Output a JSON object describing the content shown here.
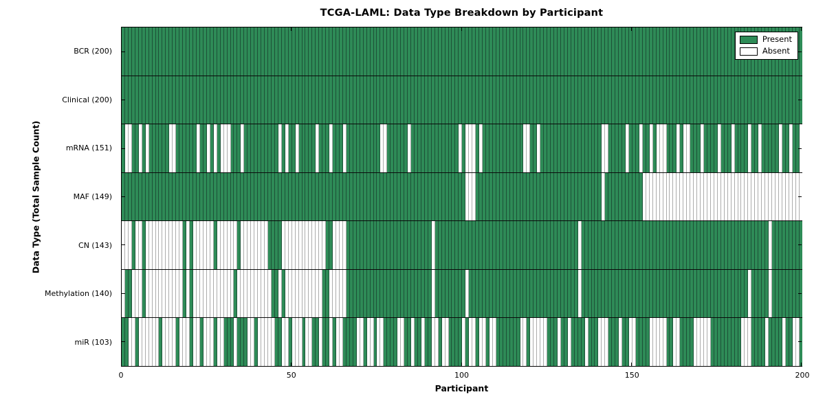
{
  "title": "TCGA-LAML: Data Type Breakdown by Participant",
  "axes": {
    "xlabel": "Participant",
    "ylabel": "Data Type (Total Sample Count)",
    "x_tick_labels": [
      "0",
      "50",
      "100",
      "150",
      "200"
    ]
  },
  "legend": {
    "items": [
      {
        "label": "Present",
        "color": "#2E8B57"
      },
      {
        "label": "Absent",
        "color": "#FFFFFF"
      }
    ]
  },
  "colors": {
    "present": "#2E8B57",
    "absent": "#FFFFFF",
    "present_edge": "#1d5137",
    "absent_edge": "#ababab",
    "row_border": "#0a0a0a"
  },
  "chart_data": {
    "type": "heatmap",
    "title": "TCGA-LAML: Data Type Breakdown by Participant",
    "xlabel": "Participant",
    "ylabel": "Data Type (Total Sample Count)",
    "x_range": [
      0,
      200
    ],
    "n_participants": 200,
    "x_ticks": [
      0,
      50,
      100,
      150,
      200
    ],
    "grid": false,
    "legend_entries": [
      "Present",
      "Absent"
    ],
    "legend_position": "upper right",
    "cell_values": {
      "present": 1,
      "absent": 0
    },
    "rows": [
      {
        "label": "BCR (200)",
        "data_type": "BCR",
        "present_count": 200,
        "absent_count": 0,
        "absent_participants": []
      },
      {
        "label": "Clinical (200)",
        "data_type": "Clinical",
        "present_count": 200,
        "absent_count": 0,
        "absent_participants": []
      },
      {
        "label": "mRNA (151)",
        "data_type": "mRNA",
        "present_count": 151,
        "absent_count": 49,
        "absent_participants": [
          1,
          2,
          5,
          7,
          14,
          15,
          22,
          25,
          27,
          29,
          30,
          31,
          35,
          46,
          48,
          51,
          57,
          61,
          65,
          76,
          77,
          84,
          99,
          101,
          102,
          103,
          105,
          118,
          119,
          122,
          141,
          142,
          148,
          152,
          155,
          157,
          158,
          159,
          163,
          165,
          166,
          170,
          175,
          179,
          184,
          187,
          193,
          196,
          199
        ]
      },
      {
        "label": "MAF (149)",
        "data_type": "MAF",
        "present_count": 149,
        "absent_count": 51,
        "absent_participants": [
          101,
          102,
          103,
          141,
          153,
          154,
          155,
          156,
          157,
          158,
          159,
          160,
          161,
          162,
          163,
          164,
          165,
          166,
          167,
          168,
          169,
          170,
          171,
          172,
          173,
          174,
          175,
          176,
          177,
          178,
          179,
          180,
          181,
          182,
          183,
          184,
          185,
          186,
          187,
          188,
          189,
          190,
          191,
          192,
          193,
          194,
          195,
          196,
          197,
          198,
          199
        ]
      },
      {
        "label": "CN (143)",
        "data_type": "CN",
        "present_count": 143,
        "absent_count": 57,
        "absent_participants": [
          0,
          1,
          2,
          4,
          5,
          7,
          8,
          9,
          10,
          11,
          12,
          13,
          14,
          15,
          16,
          17,
          19,
          21,
          22,
          23,
          24,
          25,
          26,
          28,
          29,
          30,
          31,
          32,
          33,
          35,
          36,
          37,
          38,
          39,
          40,
          41,
          42,
          47,
          48,
          49,
          50,
          51,
          52,
          53,
          54,
          55,
          56,
          57,
          58,
          59,
          62,
          63,
          64,
          65,
          91,
          134,
          190
        ]
      },
      {
        "label": "Methylation (140)",
        "data_type": "Methylation",
        "present_count": 140,
        "absent_count": 60,
        "absent_participants": [
          0,
          3,
          4,
          5,
          7,
          8,
          9,
          10,
          11,
          12,
          13,
          14,
          15,
          16,
          17,
          19,
          21,
          22,
          23,
          24,
          25,
          26,
          27,
          28,
          29,
          30,
          31,
          32,
          34,
          35,
          36,
          37,
          38,
          39,
          40,
          41,
          42,
          43,
          46,
          48,
          49,
          50,
          51,
          52,
          53,
          54,
          55,
          56,
          57,
          58,
          61,
          62,
          63,
          64,
          65,
          91,
          101,
          134,
          184,
          190
        ]
      },
      {
        "label": "miR (103)",
        "data_type": "miR",
        "present_count": 103,
        "absent_count": 97,
        "absent_participants": [
          2,
          3,
          5,
          6,
          7,
          8,
          9,
          10,
          12,
          13,
          14,
          15,
          17,
          18,
          19,
          21,
          22,
          24,
          25,
          26,
          28,
          29,
          33,
          37,
          38,
          40,
          41,
          42,
          43,
          44,
          47,
          48,
          50,
          51,
          52,
          54,
          55,
          58,
          61,
          63,
          64,
          69,
          70,
          72,
          73,
          75,
          76,
          81,
          82,
          85,
          88,
          91,
          92,
          94,
          95,
          100,
          102,
          103,
          105,
          106,
          108,
          109,
          117,
          118,
          120,
          121,
          122,
          123,
          124,
          128,
          131,
          136,
          140,
          141,
          142,
          146,
          149,
          150,
          155,
          156,
          157,
          158,
          159,
          162,
          163,
          168,
          169,
          170,
          171,
          172,
          182,
          183,
          184,
          189,
          194,
          197,
          198
        ]
      }
    ]
  }
}
